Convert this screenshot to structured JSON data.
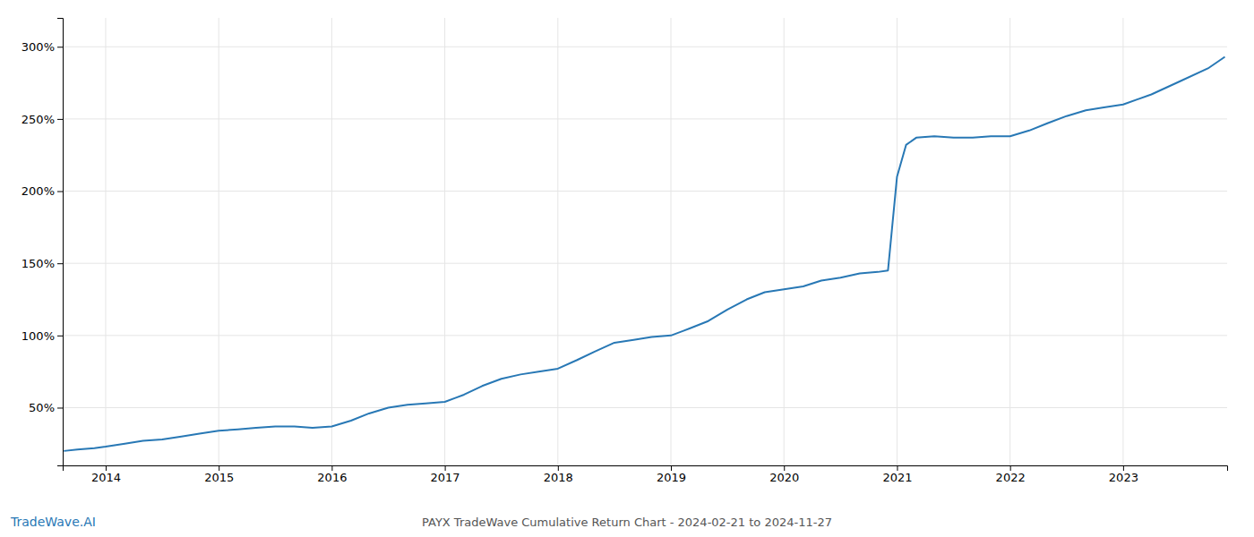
{
  "chart_data": {
    "type": "line",
    "title": "PAYX TradeWave Cumulative Return Chart - 2024-02-21 to 2024-11-27",
    "annotations": [
      "TradeWave.AI"
    ],
    "color": "#2878b5",
    "x": [
      2013.63,
      2013.75,
      2013.9,
      2014.0,
      2014.17,
      2014.33,
      2014.5,
      2014.67,
      2014.83,
      2015.0,
      2015.17,
      2015.33,
      2015.5,
      2015.67,
      2015.83,
      2016.0,
      2016.17,
      2016.33,
      2016.5,
      2016.67,
      2016.83,
      2017.0,
      2017.17,
      2017.33,
      2017.5,
      2017.67,
      2017.83,
      2018.0,
      2018.17,
      2018.33,
      2018.5,
      2018.67,
      2018.83,
      2019.0,
      2019.17,
      2019.33,
      2019.5,
      2019.67,
      2019.83,
      2020.0,
      2020.17,
      2020.33,
      2020.5,
      2020.67,
      2020.83,
      2020.92,
      2021.0,
      2021.08,
      2021.17,
      2021.33,
      2021.5,
      2021.67,
      2021.83,
      2022.0,
      2022.17,
      2022.33,
      2022.5,
      2022.67,
      2022.83,
      2023.0,
      2023.25,
      2023.5,
      2023.75,
      2023.9
    ],
    "values": [
      20,
      21,
      22,
      23,
      25,
      27,
      28,
      30,
      32,
      34,
      35,
      36,
      37,
      37,
      36,
      37,
      41,
      46,
      50,
      52,
      53,
      54,
      59,
      65,
      70,
      73,
      75,
      77,
      83,
      89,
      95,
      97,
      99,
      100,
      105,
      110,
      118,
      125,
      130,
      132,
      134,
      138,
      140,
      143,
      144,
      145,
      210,
      232,
      237,
      238,
      237,
      237,
      238,
      238,
      242,
      247,
      252,
      256,
      258,
      260,
      267,
      276,
      285,
      293
    ],
    "xlim": [
      2013.62,
      2023.92
    ],
    "xticks": [
      2014,
      2015,
      2016,
      2017,
      2018,
      2019,
      2020,
      2021,
      2022,
      2023
    ],
    "ylim": [
      10,
      320
    ],
    "yticks": [
      {
        "value": 50,
        "label": "50%"
      },
      {
        "value": 100,
        "label": "100%"
      },
      {
        "value": 150,
        "label": "150%"
      },
      {
        "value": 200,
        "label": "200%"
      },
      {
        "value": 250,
        "label": "250%"
      },
      {
        "value": 300,
        "label": "300%"
      }
    ],
    "grid": true
  }
}
